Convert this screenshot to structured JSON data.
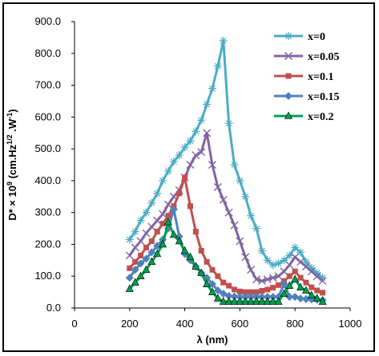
{
  "chart_data": {
    "type": "line",
    "xlabel": "λ (nm)",
    "ylabel": {
      "pre": "D* × 10",
      "sup1": "9",
      "mid": " (cm.Hz",
      "sup2": "1/2",
      "post": " .W",
      "sup3": "-1",
      "end": ")"
    },
    "xlim": [
      0,
      1000
    ],
    "ylim": [
      0,
      900
    ],
    "xticks": [
      0,
      200,
      400,
      600,
      800,
      1000
    ],
    "yticks": [
      0,
      100,
      200,
      300,
      400,
      500,
      600,
      700,
      800,
      900
    ],
    "ytick_labels": [
      "0.0",
      "100.0",
      "200.0",
      "300.0",
      "400.0",
      "500.0",
      "600.0",
      "700.0",
      "800.0",
      "900.0"
    ],
    "grid": false,
    "legend_position": "top-right",
    "series": [
      {
        "name": "x=0",
        "color": "#4bacc6",
        "marker": "star",
        "x": [
          200,
          220,
          240,
          260,
          280,
          300,
          320,
          340,
          360,
          380,
          400,
          420,
          440,
          460,
          480,
          500,
          520,
          540,
          560,
          580,
          600,
          620,
          640,
          660,
          680,
          700,
          720,
          740,
          760,
          780,
          800,
          820,
          840,
          860,
          880,
          900
        ],
        "y": [
          215,
          240,
          275,
          300,
          330,
          360,
          400,
          430,
          460,
          480,
          505,
          525,
          555,
          590,
          640,
          690,
          760,
          840,
          580,
          450,
          400,
          350,
          290,
          250,
          180,
          150,
          135,
          140,
          150,
          165,
          190,
          175,
          145,
          125,
          110,
          95
        ]
      },
      {
        "name": "x=0.05",
        "color": "#8064a2",
        "marker": "x",
        "x": [
          200,
          220,
          240,
          260,
          280,
          300,
          320,
          340,
          360,
          380,
          400,
          420,
          440,
          460,
          480,
          500,
          520,
          540,
          560,
          580,
          600,
          620,
          640,
          660,
          680,
          700,
          720,
          740,
          760,
          780,
          800,
          820,
          840,
          860,
          880,
          900
        ],
        "y": [
          165,
          190,
          210,
          235,
          255,
          275,
          295,
          325,
          350,
          370,
          410,
          450,
          480,
          490,
          550,
          450,
          380,
          340,
          300,
          260,
          210,
          160,
          120,
          90,
          85,
          90,
          95,
          100,
          115,
          135,
          160,
          145,
          130,
          115,
          100,
          85
        ]
      },
      {
        "name": "x=0.1",
        "color": "#c0504d",
        "marker": "square",
        "x": [
          200,
          220,
          240,
          260,
          280,
          300,
          320,
          340,
          360,
          380,
          400,
          420,
          440,
          460,
          480,
          500,
          520,
          540,
          560,
          580,
          600,
          620,
          640,
          660,
          680,
          700,
          720,
          740,
          760,
          780,
          800,
          820,
          840,
          860,
          880,
          900
        ],
        "y": [
          125,
          145,
          165,
          190,
          210,
          240,
          265,
          290,
          320,
          360,
          410,
          320,
          240,
          180,
          145,
          120,
          100,
          80,
          70,
          58,
          52,
          50,
          50,
          50,
          54,
          58,
          64,
          72,
          85,
          100,
          115,
          95,
          80,
          65,
          55,
          48
        ]
      },
      {
        "name": "x=0.15",
        "color": "#4f81bd",
        "marker": "diamond",
        "x": [
          200,
          220,
          240,
          260,
          280,
          300,
          320,
          340,
          360,
          380,
          400,
          420,
          440,
          460,
          480,
          500,
          520,
          540,
          560,
          580,
          600,
          620,
          640,
          660,
          680,
          700,
          720,
          740,
          760,
          780,
          800,
          820,
          840,
          860,
          880,
          900
        ],
        "y": [
          95,
          120,
          140,
          155,
          175,
          195,
          215,
          250,
          310,
          225,
          170,
          150,
          130,
          110,
          95,
          75,
          55,
          45,
          38,
          36,
          35,
          35,
          35,
          35,
          35,
          35,
          35,
          35,
          75,
          35,
          35,
          30,
          28,
          27,
          26,
          25
        ]
      },
      {
        "name": "x=0.2",
        "color": "#00a050",
        "marker": "triangle",
        "x": [
          200,
          220,
          240,
          260,
          280,
          300,
          320,
          340,
          360,
          380,
          400,
          420,
          440,
          460,
          480,
          500,
          520,
          540,
          560,
          580,
          600,
          620,
          640,
          660,
          680,
          700,
          720,
          740,
          760,
          780,
          800,
          820,
          840,
          860,
          880,
          900
        ],
        "y": [
          60,
          80,
          100,
          120,
          145,
          170,
          200,
          270,
          230,
          210,
          180,
          160,
          130,
          110,
          75,
          50,
          30,
          20,
          20,
          20,
          20,
          20,
          20,
          20,
          20,
          20,
          20,
          20,
          45,
          70,
          90,
          65,
          55,
          40,
          30,
          20
        ]
      }
    ]
  }
}
